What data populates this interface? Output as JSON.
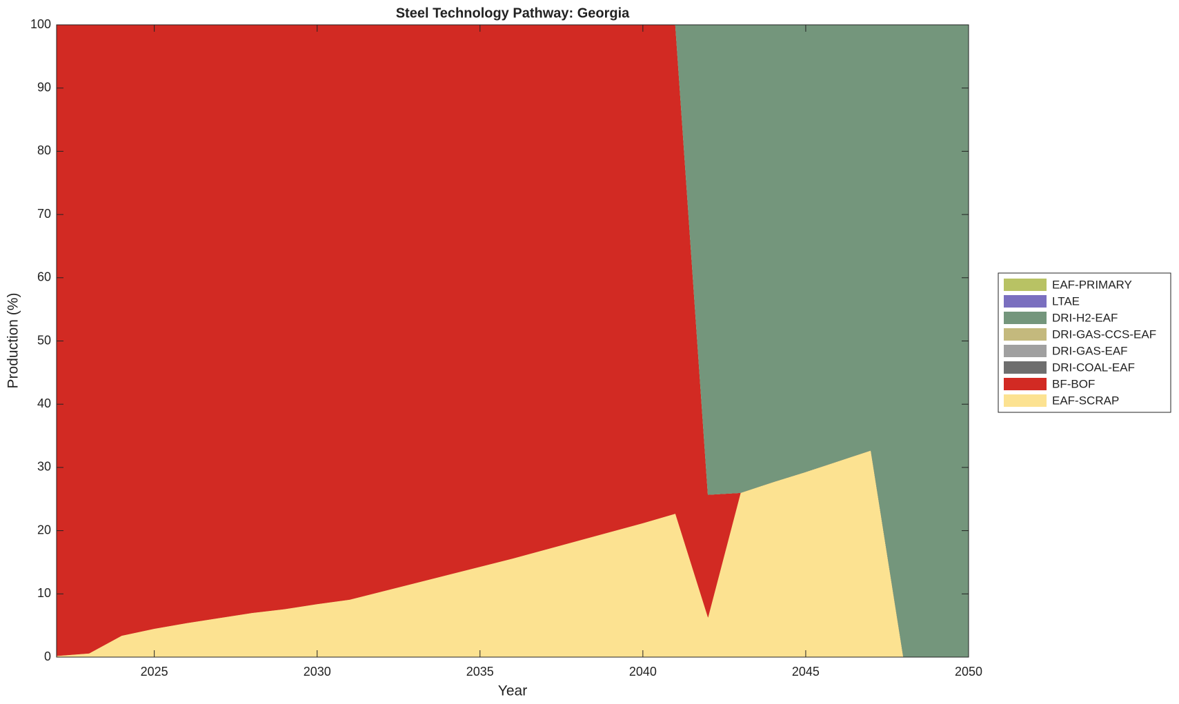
{
  "chart_data": {
    "type": "stacked_area",
    "title": "Steel Technology Pathway: Georgia",
    "x_label": "Year",
    "y_label": "Production (%)",
    "x": [
      2022,
      2023,
      2024,
      2025,
      2026,
      2027,
      2028,
      2029,
      2030,
      2031,
      2032,
      2033,
      2034,
      2035,
      2036,
      2037,
      2038,
      2039,
      2040,
      2041,
      2042,
      2043,
      2044,
      2045,
      2046,
      2047,
      2048,
      2049,
      2050
    ],
    "xlim": [
      2022,
      2050
    ],
    "xticks": [
      2025,
      2030,
      2035,
      2040,
      2045,
      2050
    ],
    "ylim": [
      0,
      100
    ],
    "yticks": [
      0,
      10,
      20,
      30,
      40,
      50,
      60,
      70,
      80,
      90,
      100
    ],
    "legend": "outside-right",
    "series": [
      {
        "name": "EAF-SCRAP",
        "color": "#fce291",
        "values": [
          0.2,
          0.6,
          3.4,
          4.5,
          5.4,
          6.2,
          7.0,
          7.6,
          8.4,
          9.1,
          10.4,
          11.7,
          13.0,
          14.3,
          15.6,
          17.0,
          18.4,
          19.8,
          21.2,
          22.7,
          6.3,
          26.0,
          27.7,
          29.3,
          31.0,
          32.7,
          0,
          0,
          0
        ]
      },
      {
        "name": "BF-BOF",
        "color": "#d22a23",
        "values": [
          99.8,
          99.4,
          96.6,
          95.5,
          94.6,
          93.8,
          93.0,
          92.4,
          91.6,
          90.9,
          89.6,
          88.3,
          87.0,
          85.7,
          84.4,
          83.0,
          81.6,
          80.2,
          78.8,
          77.3,
          19.4,
          0,
          0,
          0,
          0,
          0,
          0,
          0,
          0
        ]
      },
      {
        "name": "DRI-COAL-EAF",
        "color": "#6e6e6e",
        "values": [
          0,
          0,
          0,
          0,
          0,
          0,
          0,
          0,
          0,
          0,
          0,
          0,
          0,
          0,
          0,
          0,
          0,
          0,
          0,
          0,
          0,
          0,
          0,
          0,
          0,
          0,
          0,
          0,
          0
        ]
      },
      {
        "name": "DRI-GAS-EAF",
        "color": "#a0a0a0",
        "values": [
          0,
          0,
          0,
          0,
          0,
          0,
          0,
          0,
          0,
          0,
          0,
          0,
          0,
          0,
          0,
          0,
          0,
          0,
          0,
          0,
          0,
          0,
          0,
          0,
          0,
          0,
          0,
          0,
          0
        ]
      },
      {
        "name": "DRI-GAS-CCS-EAF",
        "color": "#c4b97d",
        "values": [
          0,
          0,
          0,
          0,
          0,
          0,
          0,
          0,
          0,
          0,
          0,
          0,
          0,
          0,
          0,
          0,
          0,
          0,
          0,
          0,
          0,
          0,
          0,
          0,
          0,
          0,
          0,
          0,
          0
        ]
      },
      {
        "name": "DRI-H2-EAF",
        "color": "#74967c",
        "values": [
          0,
          0,
          0,
          0,
          0,
          0,
          0,
          0,
          0,
          0,
          0,
          0,
          0,
          0,
          0,
          0,
          0,
          0,
          0,
          0,
          74.3,
          74.0,
          72.3,
          70.7,
          69.0,
          67.3,
          100,
          100,
          100
        ]
      },
      {
        "name": "LTAE",
        "color": "#7a6fbf",
        "values": [
          0,
          0,
          0,
          0,
          0,
          0,
          0,
          0,
          0,
          0,
          0,
          0,
          0,
          0,
          0,
          0,
          0,
          0,
          0,
          0,
          0,
          0,
          0,
          0,
          0,
          0,
          0,
          0,
          0
        ]
      },
      {
        "name": "EAF-PRIMARY",
        "color": "#b8c264",
        "values": [
          0,
          0,
          0,
          0,
          0,
          0,
          0,
          0,
          0,
          0,
          0,
          0,
          0,
          0,
          0,
          0,
          0,
          0,
          0,
          0,
          0,
          0,
          0,
          0,
          0,
          0,
          0,
          0,
          0
        ]
      }
    ]
  }
}
